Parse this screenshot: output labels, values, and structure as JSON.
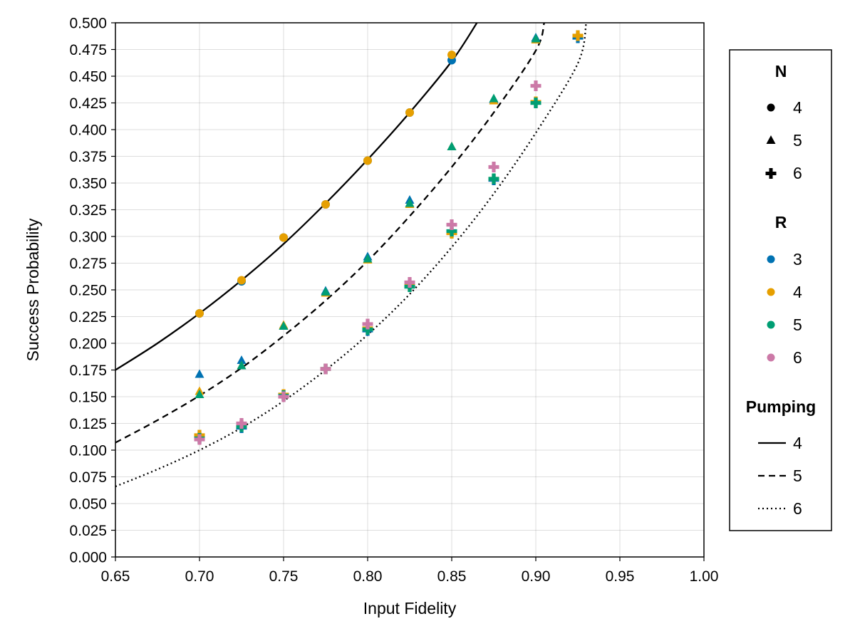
{
  "chart_data": {
    "type": "scatter",
    "xlabel": "Input Fidelity",
    "ylabel": "Success Probability",
    "xlim": [
      0.65,
      1.0
    ],
    "ylim": [
      0.0,
      0.5
    ],
    "x_ticks": [
      "0.65",
      "0.70",
      "0.75",
      "0.80",
      "0.85",
      "0.90",
      "0.95",
      "1.00"
    ],
    "y_ticks": [
      "0.000",
      "0.025",
      "0.050",
      "0.075",
      "0.100",
      "0.125",
      "0.150",
      "0.175",
      "0.200",
      "0.225",
      "0.250",
      "0.275",
      "0.300",
      "0.325",
      "0.350",
      "0.375",
      "0.400",
      "0.425",
      "0.450",
      "0.475",
      "0.500"
    ],
    "grid": true,
    "legend_position": "right",
    "legends": {
      "N": {
        "title": "N",
        "items": [
          {
            "label": "4",
            "marker": "circle"
          },
          {
            "label": "5",
            "marker": "triangle"
          },
          {
            "label": "6",
            "marker": "cross"
          }
        ]
      },
      "R": {
        "title": "R",
        "items": [
          {
            "label": "3",
            "color": "#0072b2"
          },
          {
            "label": "4",
            "color": "#e69f00"
          },
          {
            "label": "5",
            "color": "#009e73"
          },
          {
            "label": "6",
            "color": "#cc79a7"
          }
        ]
      },
      "Pumping": {
        "title": "Pumping",
        "items": [
          {
            "label": "4",
            "dash": "solid"
          },
          {
            "label": "5",
            "dash": "dashed"
          },
          {
            "label": "6",
            "dash": "dotted"
          }
        ]
      }
    },
    "curves": [
      {
        "pumping": "4",
        "dash": "solid",
        "x": [
          0.65,
          0.675,
          0.7,
          0.725,
          0.75,
          0.775,
          0.8,
          0.825,
          0.85,
          0.865
        ],
        "y": [
          0.175,
          0.2,
          0.228,
          0.259,
          0.293,
          0.331,
          0.372,
          0.416,
          0.464,
          0.5
        ]
      },
      {
        "pumping": "5",
        "dash": "dashed",
        "x": [
          0.65,
          0.675,
          0.7,
          0.725,
          0.75,
          0.775,
          0.8,
          0.825,
          0.85,
          0.875,
          0.9,
          0.905
        ],
        "y": [
          0.107,
          0.128,
          0.151,
          0.177,
          0.207,
          0.24,
          0.277,
          0.319,
          0.365,
          0.416,
          0.474,
          0.5
        ]
      },
      {
        "pumping": "6",
        "dash": "dotted",
        "x": [
          0.65,
          0.675,
          0.7,
          0.725,
          0.75,
          0.775,
          0.8,
          0.825,
          0.85,
          0.875,
          0.9,
          0.925,
          0.93
        ],
        "y": [
          0.066,
          0.082,
          0.1,
          0.121,
          0.146,
          0.175,
          0.208,
          0.246,
          0.29,
          0.34,
          0.397,
          0.462,
          0.5
        ]
      }
    ],
    "series": [
      {
        "N": "4",
        "R": "3",
        "points": [
          [
            0.7,
            0.228
          ],
          [
            0.725,
            0.258
          ],
          [
            0.75,
            0.299
          ],
          [
            0.775,
            0.33
          ],
          [
            0.8,
            0.371
          ],
          [
            0.825,
            0.416
          ],
          [
            0.85,
            0.465
          ]
        ]
      },
      {
        "N": "4",
        "R": "4",
        "points": [
          [
            0.7,
            0.228
          ],
          [
            0.725,
            0.259
          ],
          [
            0.75,
            0.299
          ],
          [
            0.775,
            0.33
          ],
          [
            0.8,
            0.371
          ],
          [
            0.825,
            0.416
          ],
          [
            0.85,
            0.47
          ]
        ]
      },
      {
        "N": "5",
        "R": "3",
        "points": [
          [
            0.7,
            0.171
          ],
          [
            0.725,
            0.184
          ],
          [
            0.75,
            0.216
          ],
          [
            0.775,
            0.249
          ],
          [
            0.8,
            0.281
          ],
          [
            0.825,
            0.334
          ],
          [
            0.85,
            0.384
          ],
          [
            0.875,
            0.428
          ],
          [
            0.9,
            0.486
          ]
        ]
      },
      {
        "N": "5",
        "R": "4",
        "points": [
          [
            0.7,
            0.155
          ],
          [
            0.725,
            0.179
          ],
          [
            0.75,
            0.217
          ],
          [
            0.775,
            0.247
          ],
          [
            0.8,
            0.278
          ],
          [
            0.825,
            0.33
          ],
          [
            0.85,
            0.384
          ],
          [
            0.875,
            0.427
          ],
          [
            0.9,
            0.484
          ]
        ]
      },
      {
        "N": "5",
        "R": "5",
        "points": [
          [
            0.7,
            0.152
          ],
          [
            0.725,
            0.179
          ],
          [
            0.75,
            0.216
          ],
          [
            0.775,
            0.248
          ],
          [
            0.8,
            0.279
          ],
          [
            0.825,
            0.331
          ],
          [
            0.85,
            0.384
          ],
          [
            0.875,
            0.429
          ],
          [
            0.9,
            0.485
          ]
        ]
      },
      {
        "N": "6",
        "R": "3",
        "points": [
          [
            0.7,
            0.112
          ],
          [
            0.725,
            0.121
          ],
          [
            0.75,
            0.151
          ],
          [
            0.775,
            0.176
          ],
          [
            0.8,
            0.212
          ],
          [
            0.825,
            0.253
          ],
          [
            0.85,
            0.304
          ],
          [
            0.875,
            0.353
          ],
          [
            0.9,
            0.425
          ],
          [
            0.925,
            0.486
          ]
        ]
      },
      {
        "N": "6",
        "R": "4",
        "points": [
          [
            0.7,
            0.114
          ],
          [
            0.725,
            0.123
          ],
          [
            0.75,
            0.152
          ],
          [
            0.775,
            0.176
          ],
          [
            0.8,
            0.214
          ],
          [
            0.825,
            0.254
          ],
          [
            0.85,
            0.303
          ],
          [
            0.875,
            0.354
          ],
          [
            0.9,
            0.426
          ],
          [
            0.925,
            0.488
          ]
        ]
      },
      {
        "N": "6",
        "R": "5",
        "points": [
          [
            0.7,
            0.111
          ],
          [
            0.725,
            0.122
          ],
          [
            0.75,
            0.151
          ],
          [
            0.775,
            0.176
          ],
          [
            0.8,
            0.213
          ],
          [
            0.825,
            0.253
          ],
          [
            0.85,
            0.305
          ],
          [
            0.875,
            0.354
          ],
          [
            0.9,
            0.425
          ]
        ]
      },
      {
        "N": "6",
        "R": "6",
        "points": [
          [
            0.7,
            0.11
          ],
          [
            0.725,
            0.125
          ],
          [
            0.75,
            0.15
          ],
          [
            0.775,
            0.176
          ],
          [
            0.8,
            0.218
          ],
          [
            0.825,
            0.257
          ],
          [
            0.85,
            0.311
          ],
          [
            0.875,
            0.365
          ],
          [
            0.9,
            0.441
          ]
        ]
      }
    ]
  }
}
